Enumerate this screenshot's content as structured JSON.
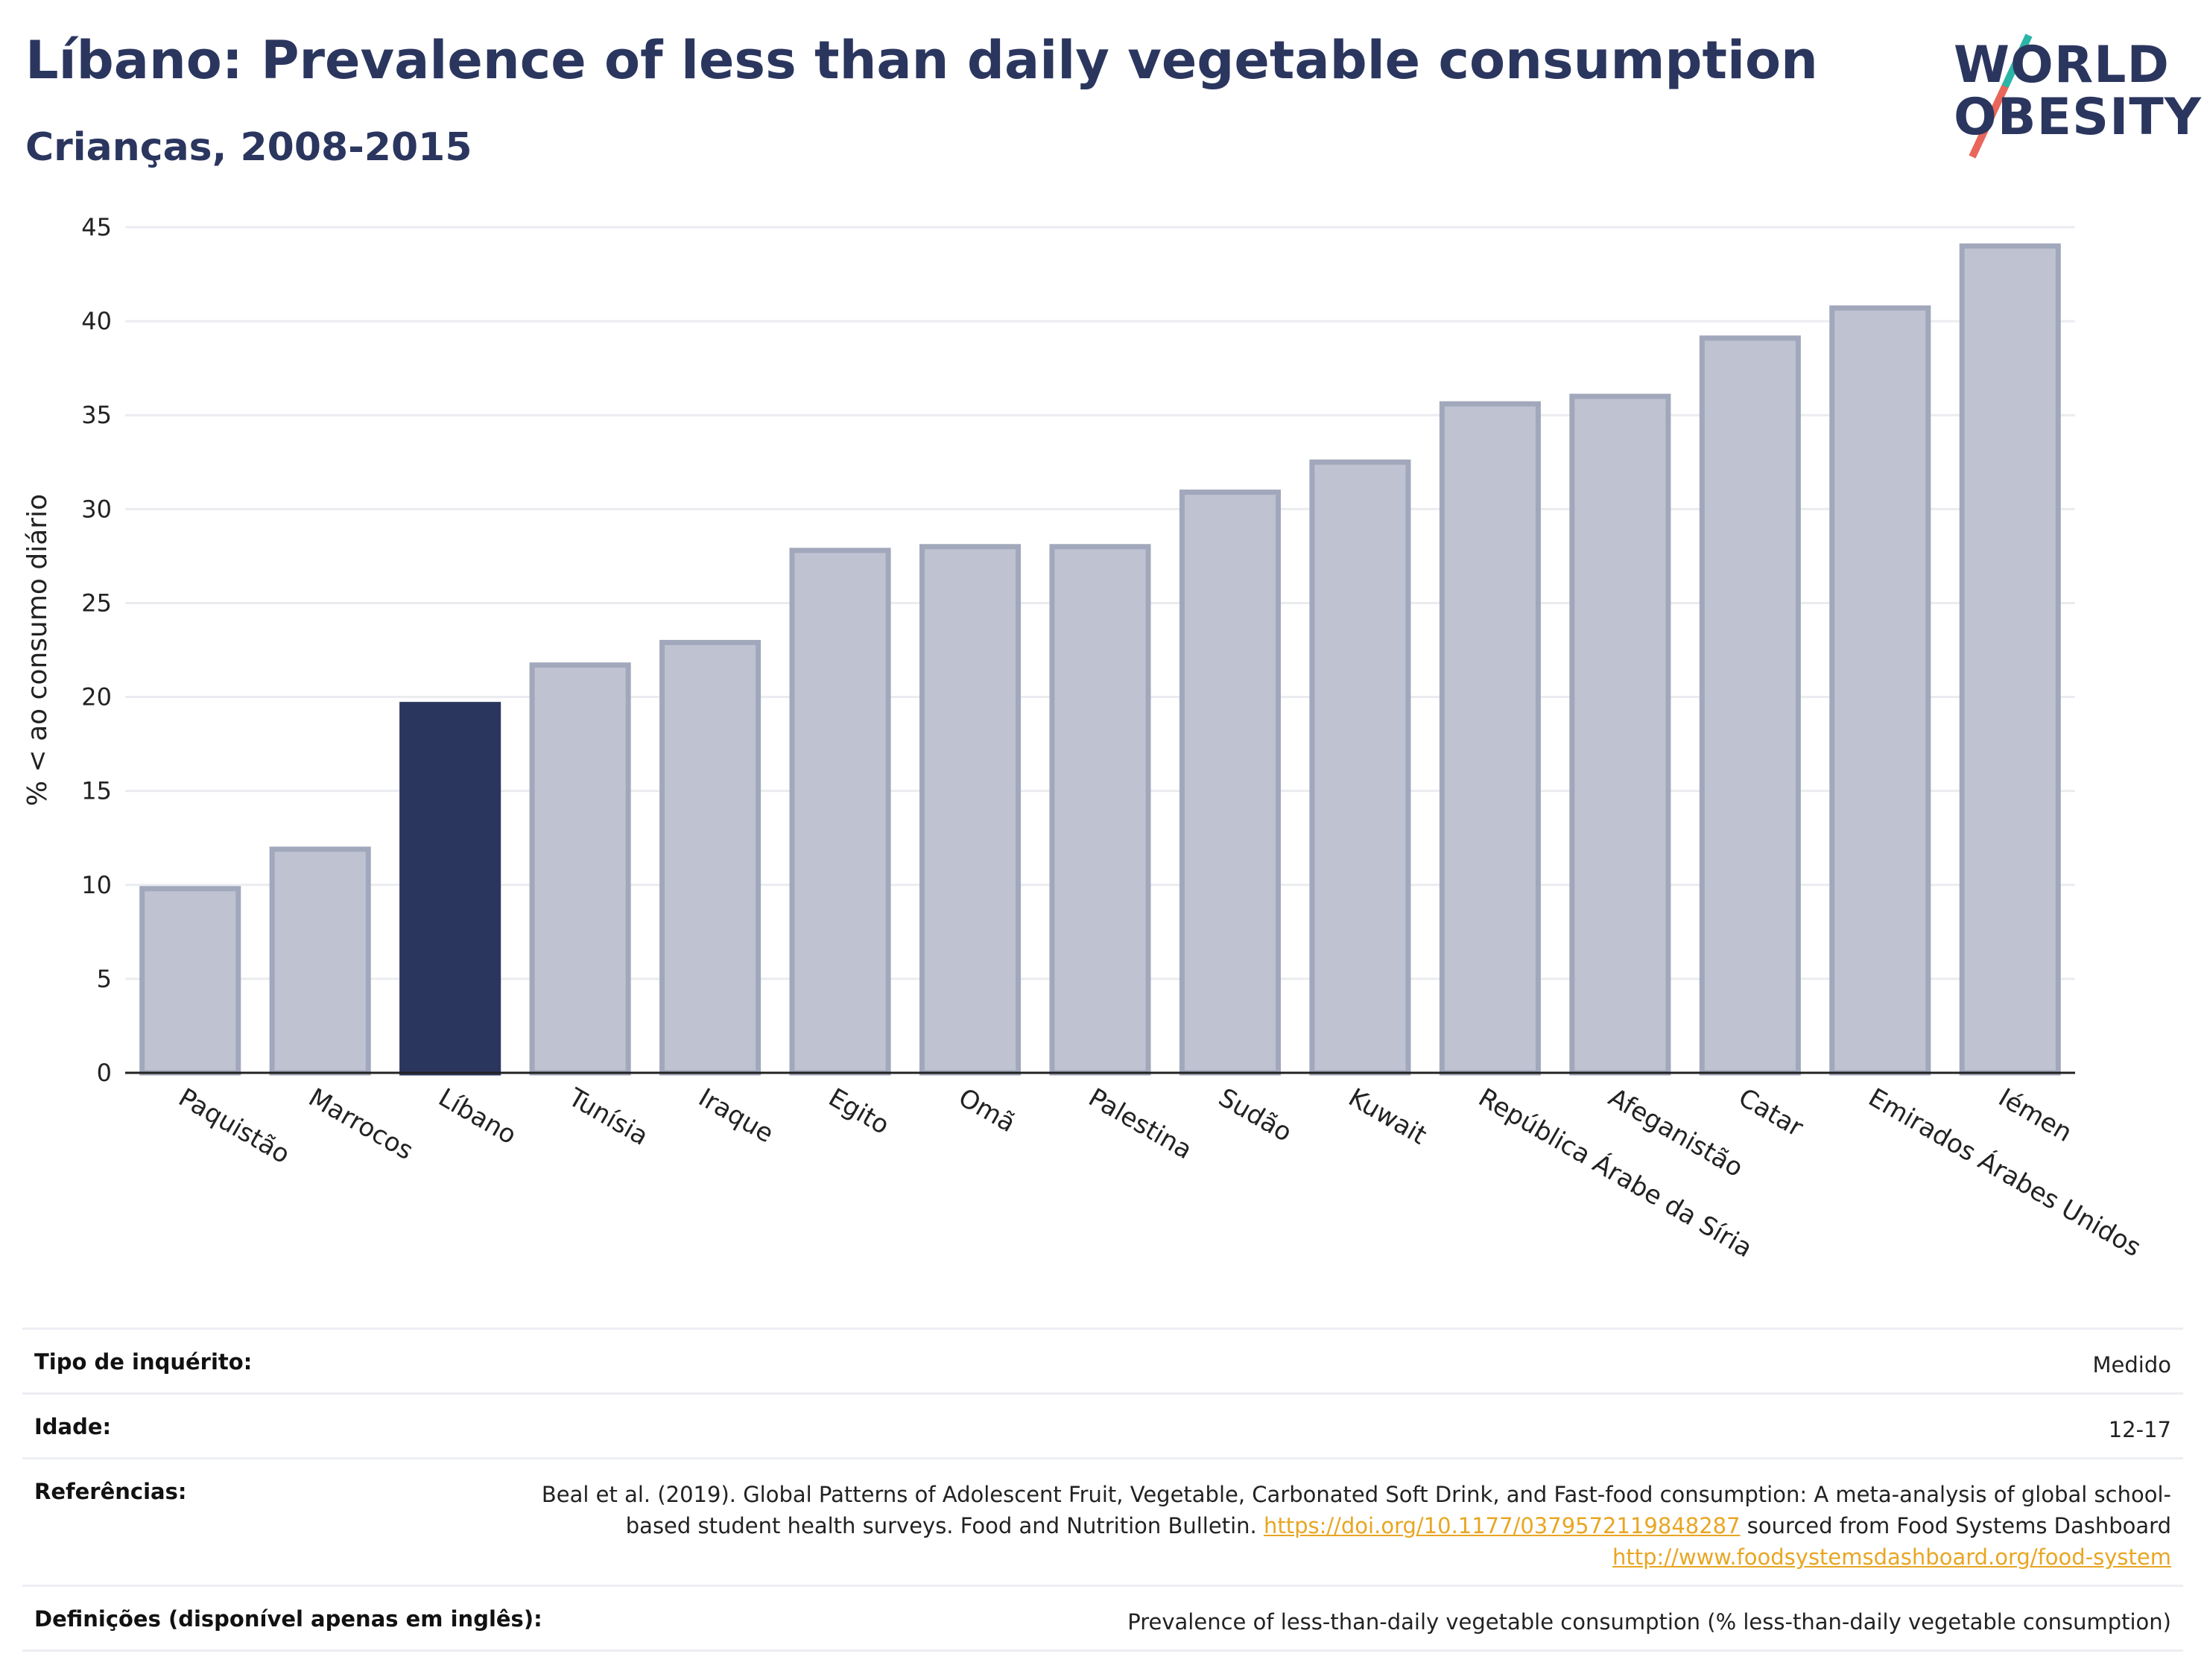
{
  "header": {
    "title": "Líbano: Prevalence of less than daily vegetable consumption",
    "subtitle": "Crianças, 2008-2015",
    "logo_line1": "WORLD",
    "logo_line2": "OBESITY"
  },
  "colors": {
    "highlight": "#2b365f",
    "bar_fill": "#bfc3d1",
    "bar_stroke": "#a2a8bc",
    "grid": "#ebecf0",
    "link": "#e8a623"
  },
  "chart_data": {
    "type": "bar",
    "title": "Líbano: Prevalence of less than daily vegetable consumption",
    "subtitle": "Crianças, 2008-2015",
    "ylabel": "% < ao consumo diário",
    "xlabel": "",
    "ylim": [
      0,
      45
    ],
    "yticks": [
      0,
      5,
      10,
      15,
      20,
      25,
      30,
      35,
      40,
      45
    ],
    "grid": true,
    "highlight": "Líbano",
    "categories": [
      "Paquistão",
      "Marrocos",
      "Líbano",
      "Tunísia",
      "Iraque",
      "Egito",
      "Omã",
      "Palestina",
      "Sudão",
      "Kuwait",
      "República Árabe da Síria",
      "Afeganistão",
      "Catar",
      "Emirados Árabes Unidos",
      "Iémen"
    ],
    "values": [
      9.8,
      11.9,
      19.6,
      21.7,
      22.9,
      27.8,
      28.0,
      28.0,
      30.9,
      32.5,
      35.6,
      36.0,
      39.1,
      40.7,
      44.0
    ]
  },
  "meta": {
    "survey_type_label": "Tipo de inquérito:",
    "survey_type_value": "Medido",
    "age_label": "Idade:",
    "age_value": "12-17",
    "references_label": "Referências:",
    "references_text_1": "Beal et al. (2019). Global Patterns of Adolescent Fruit, Vegetable, Carbonated Soft Drink, and Fast-food consumption: A meta-analysis of global school-based student health surveys. Food and Nutrition Bulletin.",
    "references_link_1": "https://doi.org/10.1177/0379572119848287",
    "references_text_2": "sourced from Food Systems Dashboard",
    "references_link_2": "http://www.foodsystemsdashboard.org/food-system",
    "definitions_label": "Definições (disponível apenas em inglês):",
    "definitions_value": "Prevalence of less-than-daily vegetable consumption (% less-than-daily vegetable consumption)"
  }
}
